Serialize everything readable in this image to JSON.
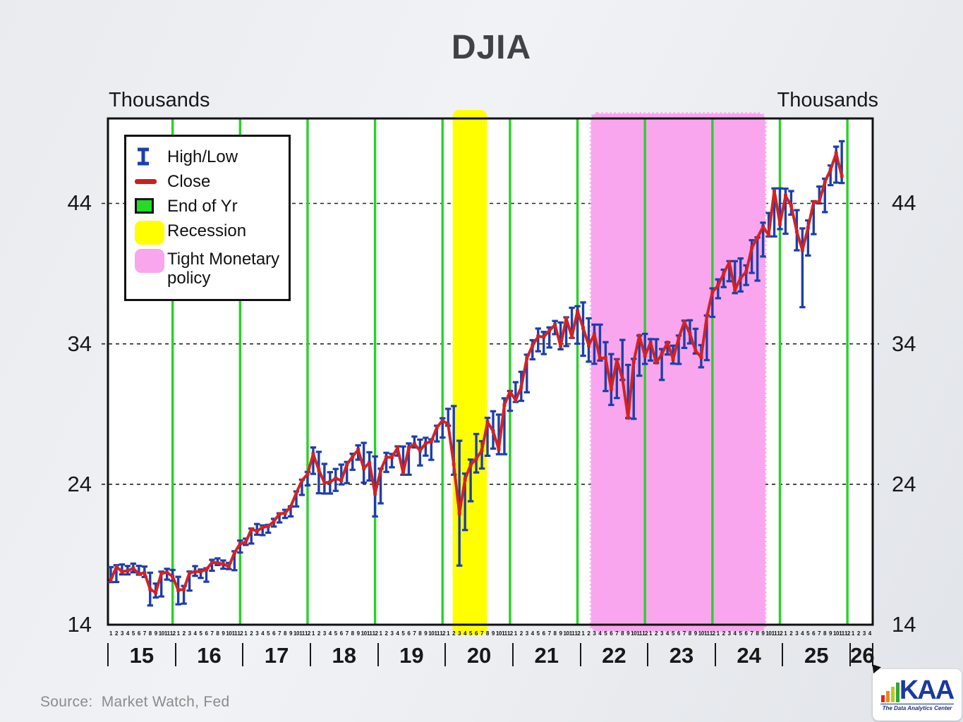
{
  "title": "DJIA",
  "y_axis": {
    "unit_label": "Thousands"
  },
  "source": {
    "text": "Source:  Market Watch, Fed"
  },
  "legend": {
    "items": [
      {
        "id": "high-low",
        "label": "High/Low"
      },
      {
        "id": "close",
        "label": "Close"
      },
      {
        "id": "end-of-yr",
        "label": "End of Yr"
      },
      {
        "id": "recession",
        "label": "Recession"
      },
      {
        "id": "tight-policy",
        "label": "Tight Monetary policy"
      }
    ]
  },
  "logo": {
    "text": "KAA",
    "caption": "The Data Analytics Center"
  },
  "colors": {
    "hilo_bar": "#1d3fa8",
    "close_line": "#d42222",
    "year_end_line": "#28d228",
    "recession_band": "#ffff00",
    "tight_policy_band": "#f9a6ee",
    "grid": "#222222",
    "plot_border": "#111111",
    "plot_bg": "#ffffff"
  },
  "chart_data": {
    "type": "line",
    "title": "DJIA",
    "y_unit": "Thousands",
    "x_start": "Jan 2015",
    "x_end": "Nov 2025",
    "x_axis_months_shown": 136,
    "ylim": [
      14,
      50.05
    ],
    "yticks": [
      44,
      34,
      24,
      14
    ],
    "grid": "dashed horizontal at yticks",
    "legend_position": "top-left inside plot",
    "x_axis": {
      "year_labels": [
        "15",
        "16",
        "17",
        "18",
        "19",
        "20",
        "21",
        "22",
        "23",
        "24",
        "25",
        "26"
      ],
      "months_in_full_year": 12,
      "final_year_month_count": 4
    },
    "year_end_line_months": [
      11,
      23,
      35,
      47,
      59,
      71,
      83,
      95,
      107,
      119,
      131
    ],
    "bands": [
      {
        "name": "Recession",
        "color_key": "recession_band",
        "from_month": 61.3,
        "to_month": 67.4
      },
      {
        "name": "Tight Monetary policy",
        "color_key": "tight_policy_band",
        "from_month": 85.9,
        "to_month": 116.9,
        "dotted_edge": true
      }
    ],
    "series": [
      {
        "name": "High",
        "values": [
          18.1,
          18.24,
          18.29,
          18.18,
          18.35,
          18.19,
          18.14,
          17.7,
          16.93,
          17.78,
          17.98,
          17.9,
          17.41,
          16.76,
          17.79,
          18.17,
          17.93,
          18.02,
          18.62,
          18.72,
          18.57,
          18.4,
          19.23,
          19.99,
          20.13,
          20.85,
          21.17,
          21.07,
          21.11,
          21.54,
          21.93,
          22.18,
          22.42,
          23.49,
          24.33,
          24.88,
          26.62,
          26.31,
          25.45,
          24.86,
          25.09,
          25.4,
          25.59,
          26.17,
          26.77,
          26.95,
          26.28,
          25.98,
          25.11,
          26.24,
          26.16,
          26.7,
          26.69,
          26.91,
          27.4,
          27.18,
          27.31,
          27.2,
          28.17,
          28.7,
          29.37,
          29.57,
          27.1,
          24.76,
          25.76,
          27.58,
          27.07,
          28.73,
          29.2,
          28.96,
          30.12,
          30.64,
          31.27,
          32.01,
          33.23,
          34.26,
          35.09,
          34.85,
          35.17,
          35.63,
          35.52,
          35.89,
          36.57,
          36.68,
          36.95,
          35.82,
          35.37,
          35.37,
          34.12,
          33.27,
          32.91,
          34.28,
          32.5,
          32.93,
          34.59,
          34.71,
          34.34,
          34.33,
          33.63,
          34.1,
          33.87,
          34.59,
          35.65,
          35.68,
          35.07,
          33.91,
          36.02,
          37.95,
          38.59,
          39.28,
          39.89,
          39.89,
          40.08,
          39.59,
          41.38,
          41.58,
          42.63,
          43.32,
          45.07,
          45.07,
          45.05,
          44.88,
          43.52,
          42.22,
          42.79,
          44.16,
          45.2,
          45.76,
          46.7,
          48.04,
          48.43
        ]
      },
      {
        "name": "Low",
        "values": [
          17.03,
          17.04,
          17.58,
          17.58,
          17.73,
          17.56,
          17.4,
          15.37,
          15.94,
          16.01,
          17.21,
          17.13,
          15.45,
          15.5,
          16.43,
          17.48,
          17.33,
          17.06,
          17.84,
          18.25,
          17.99,
          17.96,
          17.88,
          19.14,
          19.68,
          19.78,
          20.41,
          20.38,
          20.55,
          20.99,
          21.28,
          21.6,
          21.71,
          22.42,
          23.24,
          23.92,
          24.74,
          23.36,
          23.34,
          23.34,
          23.53,
          23.99,
          24.08,
          25.03,
          25.75,
          24.12,
          24.27,
          21.71,
          22.64,
          24.88,
          25.21,
          26.04,
          24.68,
          24.68,
          26.62,
          25.34,
          26.04,
          25.74,
          27.05,
          27.33,
          28.17,
          24.68,
          18.21,
          20.74,
          22.79,
          24.84,
          25.12,
          26.03,
          26.54,
          26.14,
          26.14,
          29.23,
          29.86,
          29.94,
          30.55,
          32.9,
          33.47,
          33.27,
          33.74,
          34.69,
          33.61,
          33.84,
          34.42,
          34.01,
          33.15,
          32.73,
          32.58,
          32.81,
          30.64,
          29.65,
          30.14,
          31.43,
          28.72,
          28.66,
          31.73,
          32.57,
          32.81,
          32.64,
          31.43,
          33.24,
          32.59,
          32.57,
          33.71,
          34.03,
          33.31,
          32.33,
          32.84,
          35.92,
          37.25,
          38.04,
          38.46,
          37.61,
          37.73,
          38.19,
          39.05,
          38.5,
          40.22,
          41.65,
          41.65,
          42.17,
          41.84,
          43.2,
          40.66,
          36.61,
          40.29,
          41.81,
          44.0,
          43.38,
          45.3,
          45.48,
          45.45
        ]
      },
      {
        "name": "Close",
        "values": [
          17.16,
          18.13,
          17.78,
          17.84,
          18.01,
          17.62,
          17.69,
          16.53,
          16.28,
          17.66,
          17.72,
          17.43,
          16.47,
          16.52,
          17.69,
          17.77,
          17.79,
          17.93,
          18.43,
          18.4,
          18.31,
          18.14,
          19.12,
          19.76,
          19.86,
          20.81,
          20.66,
          20.94,
          21.01,
          21.35,
          21.89,
          21.95,
          22.41,
          23.38,
          24.27,
          24.72,
          26.15,
          25.03,
          24.1,
          24.16,
          24.42,
          24.27,
          25.42,
          25.96,
          26.46,
          25.12,
          25.54,
          23.33,
          25.0,
          25.92,
          25.93,
          26.59,
          24.82,
          26.6,
          26.86,
          26.4,
          26.92,
          27.05,
          28.05,
          28.54,
          28.26,
          25.41,
          21.92,
          24.35,
          25.38,
          25.81,
          26.43,
          28.43,
          27.78,
          26.5,
          29.64,
          30.61,
          29.98,
          30.93,
          32.98,
          33.87,
          34.53,
          34.5,
          34.94,
          35.36,
          33.84,
          35.82,
          34.48,
          36.34,
          35.13,
          33.89,
          34.68,
          32.98,
          32.99,
          30.78,
          32.85,
          31.51,
          28.73,
          32.73,
          34.59,
          33.15,
          34.09,
          32.66,
          33.27,
          34.1,
          32.91,
          34.41,
          35.56,
          34.72,
          33.51,
          33.05,
          35.95,
          37.69,
          38.15,
          39.0,
          39.81,
          37.82,
          38.69,
          39.12,
          40.84,
          41.56,
          42.33,
          41.76,
          44.91,
          42.54,
          44.54,
          43.84,
          42.0,
          40.67,
          42.27,
          44.09,
          44.13,
          45.54,
          46.4,
          47.56,
          45.95
        ]
      }
    ]
  }
}
